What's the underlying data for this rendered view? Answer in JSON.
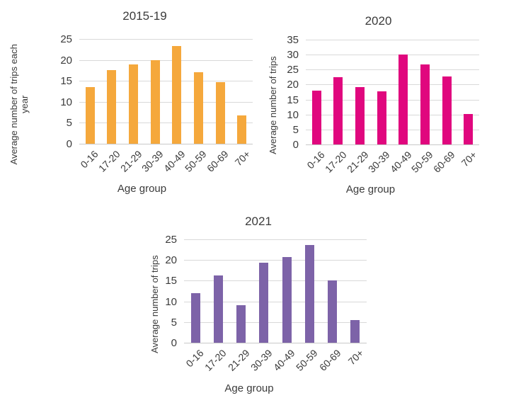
{
  "page": {
    "background": "#ffffff",
    "text_color": "#3b3b3b",
    "grid_color": "#d9d9d9",
    "axis_line_color": "#c9c9c9"
  },
  "chart_data": [
    {
      "type": "bar",
      "title": "2015-19",
      "categories": [
        "0-16",
        "17-20",
        "21-29",
        "30-39",
        "40-49",
        "50-59",
        "60-69",
        "70+"
      ],
      "values": [
        13.5,
        17.5,
        19,
        20,
        23.3,
        17,
        14.7,
        6.7
      ],
      "xlabel": "Age group",
      "ylabel": "Average number of trips each year",
      "ylim": [
        0,
        25
      ],
      "ytick_step": 5,
      "bar_color": "#F5A83C",
      "grid": true,
      "legend": "none"
    },
    {
      "type": "bar",
      "title": "2020",
      "categories": [
        "0-16",
        "17-20",
        "21-29",
        "30-39",
        "40-49",
        "50-59",
        "60-69",
        "70+"
      ],
      "values": [
        18,
        22.5,
        19.2,
        17.8,
        30,
        26.8,
        22.8,
        10.2
      ],
      "xlabel": "Age group",
      "ylabel": "Average number of trips",
      "ylim": [
        0,
        35
      ],
      "ytick_step": 5,
      "bar_color": "#E0077E",
      "grid": true,
      "legend": "none"
    },
    {
      "type": "bar",
      "title": "2021",
      "categories": [
        "0-16",
        "17-20",
        "21-29",
        "30-39",
        "40-49",
        "50-59",
        "60-69",
        "70+"
      ],
      "values": [
        12,
        16.2,
        9.1,
        19.3,
        20.8,
        23.7,
        15,
        5.5
      ],
      "xlabel": "Age group",
      "ylabel": "Average number of trips",
      "ylim": [
        0,
        25
      ],
      "ytick_step": 5,
      "bar_color": "#7D63A8",
      "grid": true,
      "legend": "none"
    }
  ]
}
